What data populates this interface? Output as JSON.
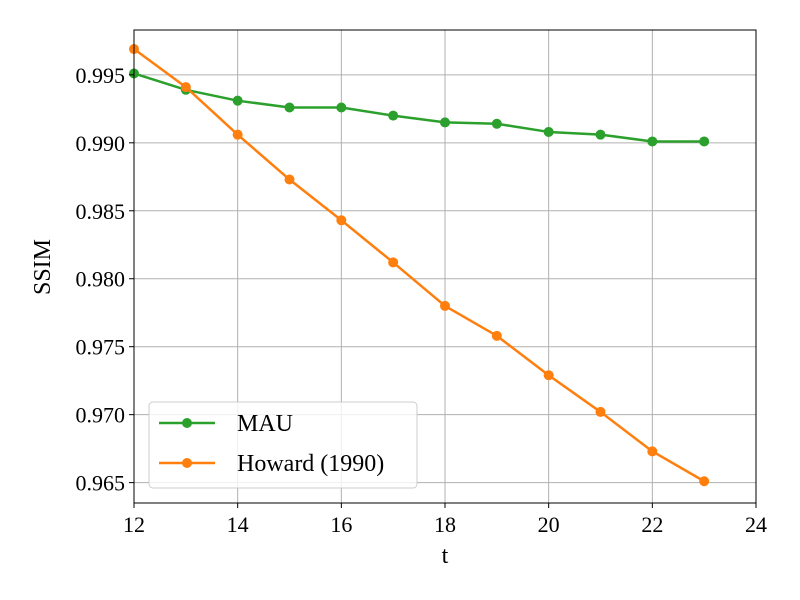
{
  "chart_data": {
    "type": "line",
    "title": "",
    "xlabel": "t",
    "ylabel": "SSIM",
    "xlim": [
      12,
      24
    ],
    "ylim": [
      0.9635,
      0.9983
    ],
    "xticks": [
      12,
      14,
      16,
      18,
      20,
      22,
      24
    ],
    "yticks": [
      0.965,
      0.97,
      0.975,
      0.98,
      0.985,
      0.99,
      0.995
    ],
    "xtick_labels": [
      "12",
      "14",
      "16",
      "18",
      "20",
      "22",
      "24"
    ],
    "ytick_labels": [
      "0.965",
      "0.970",
      "0.975",
      "0.980",
      "0.985",
      "0.990",
      "0.995"
    ],
    "grid": true,
    "legend_position": "lower-left",
    "x": [
      12,
      13,
      14,
      15,
      16,
      17,
      18,
      19,
      20,
      21,
      22,
      23
    ],
    "series": [
      {
        "name": "MAU",
        "color": "#2ca02c",
        "marker": "circle",
        "values": [
          0.9951,
          0.9939,
          0.9931,
          0.9926,
          0.9926,
          0.992,
          0.9915,
          0.9914,
          0.9908,
          0.9906,
          0.9901,
          0.9901
        ]
      },
      {
        "name": "Howard (1990)",
        "color": "#ff7f0e",
        "marker": "circle",
        "values": [
          0.9969,
          0.9941,
          0.9906,
          0.9873,
          0.9843,
          0.9812,
          0.978,
          0.9758,
          0.9729,
          0.9702,
          0.9673,
          0.9651
        ]
      }
    ]
  }
}
